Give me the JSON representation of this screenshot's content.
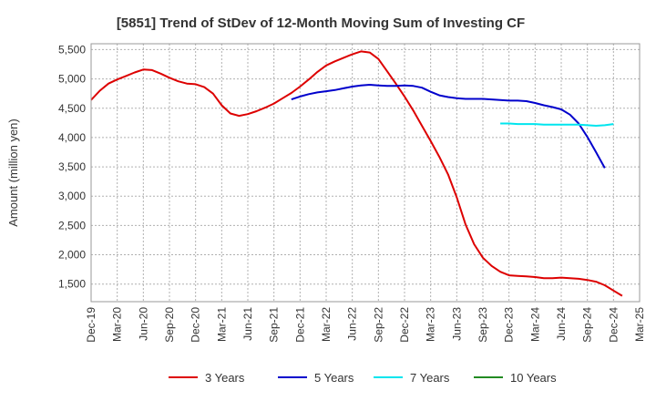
{
  "chart_data": {
    "type": "line",
    "title": "[5851]  Trend of StDev of 12-Month Moving Sum of Investing CF",
    "xlabel": "",
    "ylabel": "Amount (million yen)",
    "ylim": [
      1200,
      5600
    ],
    "yticks": [
      1500,
      2000,
      2500,
      3000,
      3500,
      4000,
      4500,
      5000,
      5500
    ],
    "ytick_labels": [
      "1,500",
      "2,000",
      "2,500",
      "3,000",
      "3,500",
      "4,000",
      "4,500",
      "5,000",
      "5,500"
    ],
    "xlim": [
      "2019-12",
      "2025-03"
    ],
    "xtick_labels": [
      "Dec-19",
      "Mar-20",
      "Jun-20",
      "Sep-20",
      "Dec-20",
      "Mar-21",
      "Jun-21",
      "Sep-21",
      "Dec-21",
      "Mar-22",
      "Jun-22",
      "Sep-22",
      "Dec-22",
      "Mar-23",
      "Jun-23",
      "Sep-23",
      "Dec-23",
      "Mar-24",
      "Jun-24",
      "Sep-24",
      "Dec-24",
      "Mar-25"
    ],
    "grid": true,
    "legend_position": "bottom",
    "series": [
      {
        "name": "3 Years",
        "color": "#dd0000",
        "start": "2019-12",
        "values": [
          4640,
          4800,
          4920,
          4990,
          5050,
          5110,
          5160,
          5150,
          5090,
          5020,
          4960,
          4920,
          4910,
          4860,
          4750,
          4550,
          4410,
          4370,
          4400,
          4450,
          4510,
          4580,
          4670,
          4760,
          4870,
          4990,
          5120,
          5230,
          5300,
          5360,
          5420,
          5470,
          5450,
          5340,
          5130,
          4920,
          4700,
          4460,
          4200,
          3940,
          3670,
          3370,
          2980,
          2520,
          2180,
          1950,
          1810,
          1710,
          1650,
          1640,
          1630,
          1620,
          1600,
          1600,
          1610,
          1600,
          1590,
          1570,
          1540,
          1480,
          1390,
          1300
        ]
      },
      {
        "name": "5 Years",
        "color": "#0000cc",
        "start": "2021-11",
        "values": [
          4650,
          4700,
          4740,
          4770,
          4790,
          4810,
          4840,
          4870,
          4890,
          4900,
          4890,
          4880,
          4880,
          4890,
          4880,
          4850,
          4780,
          4720,
          4690,
          4670,
          4660,
          4660,
          4660,
          4650,
          4640,
          4630,
          4630,
          4620,
          4590,
          4550,
          4520,
          4480,
          4390,
          4240,
          4010,
          3750,
          3480
        ]
      },
      {
        "name": "7 Years",
        "color": "#00e5ee",
        "start": "2023-11",
        "values": [
          4240,
          4240,
          4230,
          4230,
          4230,
          4220,
          4220,
          4220,
          4220,
          4220,
          4210,
          4200,
          4210,
          4230
        ]
      },
      {
        "name": "10 Years",
        "color": "#228b22",
        "start": "2019-12",
        "values": []
      }
    ]
  }
}
